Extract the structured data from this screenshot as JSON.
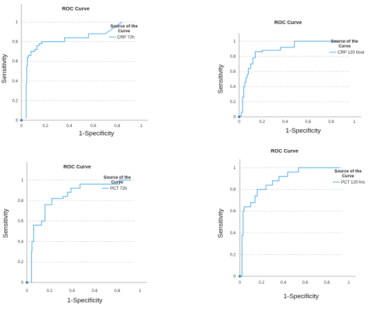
{
  "colors": {
    "curve": "#5fb3f0",
    "axis": "#9a9a9a",
    "grid": "#bdbdbd",
    "origin_dot": "#2b6cb0"
  },
  "chart_data": [
    {
      "type": "line",
      "title": "ROC Curve",
      "xlabel": "1-Specificity",
      "ylabel": "Sensitivity",
      "xlim": [
        0,
        1
      ],
      "ylim": [
        0,
        1
      ],
      "x_ticks": [
        "0",
        "0.2",
        "0.4",
        "0.6",
        "0.8",
        "1"
      ],
      "y_ticks": [
        "0",
        "0.2",
        "0.4",
        "0.6",
        "0.8",
        "1"
      ],
      "grid": "horizontal dotted",
      "legend_title": "Source of the Curve",
      "series": [
        {
          "name": "CRP 72h",
          "x": [
            0.04,
            0.04,
            0.045,
            0.045,
            0.05,
            0.05,
            0.06,
            0.06,
            0.08,
            0.08,
            0.11,
            0.11,
            0.13,
            0.13,
            0.15,
            0.15,
            0.17,
            0.17,
            0.36,
            0.36,
            0.56,
            0.56,
            0.7,
            0.84
          ],
          "y": [
            0.02,
            0.38,
            0.38,
            0.55,
            0.55,
            0.64,
            0.64,
            0.66,
            0.66,
            0.7,
            0.7,
            0.72,
            0.72,
            0.76,
            0.76,
            0.78,
            0.78,
            0.8,
            0.8,
            0.84,
            0.84,
            0.88,
            0.88,
            1.0
          ]
        }
      ]
    },
    {
      "type": "line",
      "title": "ROC Curve",
      "xlabel": "1-Specificity",
      "ylabel": "Sensitivity",
      "xlim": [
        0,
        1
      ],
      "ylim": [
        0,
        1
      ],
      "x_ticks": [
        "0",
        "0.2",
        "0.4",
        "0.6",
        "0.8",
        "1"
      ],
      "y_ticks": [
        "0",
        "0.2",
        "0.4",
        "0.6",
        "0.8",
        "1"
      ],
      "grid": "horizontal dotted",
      "legend_title": "Source of the Curve",
      "series": [
        {
          "name": "CRP 120 hour",
          "x": [
            0.0,
            0.02,
            0.02,
            0.03,
            0.03,
            0.04,
            0.04,
            0.05,
            0.05,
            0.06,
            0.06,
            0.07,
            0.07,
            0.08,
            0.08,
            0.1,
            0.1,
            0.12,
            0.12,
            0.14,
            0.14,
            0.2,
            0.2,
            0.36,
            0.36,
            0.48,
            0.48,
            0.86
          ],
          "y": [
            0.0,
            0.02,
            0.06,
            0.06,
            0.26,
            0.26,
            0.4,
            0.4,
            0.46,
            0.46,
            0.52,
            0.52,
            0.56,
            0.56,
            0.64,
            0.64,
            0.7,
            0.7,
            0.78,
            0.78,
            0.86,
            0.86,
            0.88,
            0.88,
            0.92,
            0.92,
            1.0,
            1.0
          ]
        }
      ]
    },
    {
      "type": "line",
      "title": "ROC Curve",
      "xlabel": "1-Specificity",
      "ylabel": "Sensitivity",
      "xlim": [
        0,
        1
      ],
      "ylim": [
        0,
        1
      ],
      "x_ticks": [
        "0",
        "0.2",
        "0.4",
        "0.6",
        "0.8",
        "1"
      ],
      "y_ticks": [
        "0",
        "0.2",
        "0.4",
        "0.6",
        "0.8",
        "1"
      ],
      "grid": "horizontal dotted",
      "legend_title": "Source of the Curve",
      "series": [
        {
          "name": "PCT 72h",
          "x": [
            0.04,
            0.04,
            0.045,
            0.045,
            0.06,
            0.06,
            0.13,
            0.13,
            0.16,
            0.16,
            0.22,
            0.22,
            0.32,
            0.32,
            0.36,
            0.36,
            0.39,
            0.39,
            0.47,
            0.47,
            0.82,
            0.82,
            0.92
          ],
          "y": [
            0.0,
            0.3,
            0.3,
            0.4,
            0.4,
            0.56,
            0.56,
            0.6,
            0.6,
            0.76,
            0.76,
            0.82,
            0.82,
            0.84,
            0.84,
            0.88,
            0.88,
            0.92,
            0.92,
            0.96,
            0.96,
            1.0,
            1.0
          ]
        }
      ]
    },
    {
      "type": "line",
      "title": "ROC Curve",
      "xlabel": "1-Specificity",
      "ylabel": "Sensitivity",
      "xlim": [
        0,
        1
      ],
      "ylim": [
        0,
        1
      ],
      "x_ticks": [
        "0",
        "0.2",
        "0.4",
        "0.6",
        "0.8",
        "1"
      ],
      "y_ticks": [
        "0",
        "0.2",
        "0.4",
        "0.6",
        "0.8",
        "1"
      ],
      "grid": "horizontal dotted",
      "legend_title": "Source of the Curve",
      "series": [
        {
          "name": "PCT 120 hrs",
          "x": [
            0.0,
            0.02,
            0.02,
            0.03,
            0.03,
            0.04,
            0.04,
            0.1,
            0.1,
            0.14,
            0.14,
            0.16,
            0.16,
            0.24,
            0.24,
            0.3,
            0.3,
            0.36,
            0.36,
            0.44,
            0.44,
            0.54,
            0.54,
            0.92
          ],
          "y": [
            0.0,
            0.0,
            0.38,
            0.38,
            0.6,
            0.6,
            0.64,
            0.64,
            0.68,
            0.68,
            0.74,
            0.74,
            0.8,
            0.8,
            0.84,
            0.84,
            0.88,
            0.88,
            0.92,
            0.92,
            0.96,
            0.96,
            1.0,
            1.0
          ]
        }
      ]
    }
  ]
}
